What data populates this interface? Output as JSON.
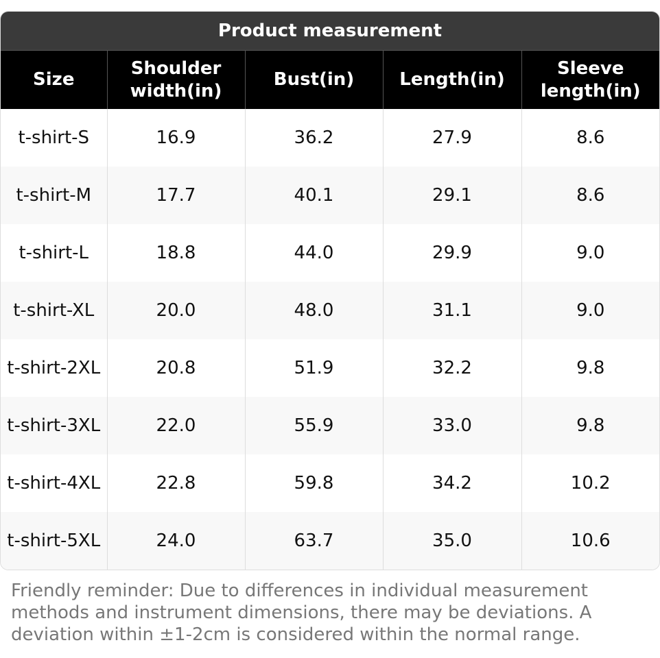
{
  "table": {
    "title": "Product measurement",
    "columns": [
      "Size",
      "Shoulder width(in)",
      "Bust(in)",
      "Length(in)",
      "Sleeve length(in)"
    ],
    "rows": [
      [
        "t-shirt-S",
        "16.9",
        "36.2",
        "27.9",
        "8.6"
      ],
      [
        "t-shirt-M",
        "17.7",
        "40.1",
        "29.1",
        "8.6"
      ],
      [
        "t-shirt-L",
        "18.8",
        "44.0",
        "29.9",
        "9.0"
      ],
      [
        "t-shirt-XL",
        "20.0",
        "48.0",
        "31.1",
        "9.0"
      ],
      [
        "t-shirt-2XL",
        "20.8",
        "51.9",
        "32.2",
        "9.8"
      ],
      [
        "t-shirt-3XL",
        "22.0",
        "55.9",
        "33.0",
        "9.8"
      ],
      [
        "t-shirt-4XL",
        "22.8",
        "59.8",
        "34.2",
        "10.2"
      ],
      [
        "t-shirt-5XL",
        "24.0",
        "63.7",
        "35.0",
        "10.6"
      ]
    ]
  },
  "footer": {
    "note": "Friendly reminder: Due to differences in individual measurement methods and instrument dimensions, there may be deviations. A deviation within ±1-2cm is considered within the normal range."
  }
}
